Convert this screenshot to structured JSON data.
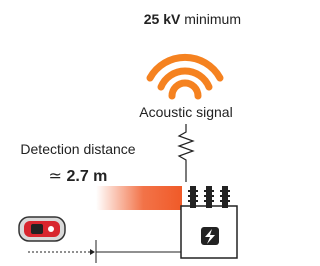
{
  "header": {
    "voltage": "25 kV",
    "voltage_note": "minimum"
  },
  "signal": {
    "label": "Acoustic signal"
  },
  "distance": {
    "label": "Detection distance",
    "symbol": "≃",
    "value": "2.7 m"
  }
}
